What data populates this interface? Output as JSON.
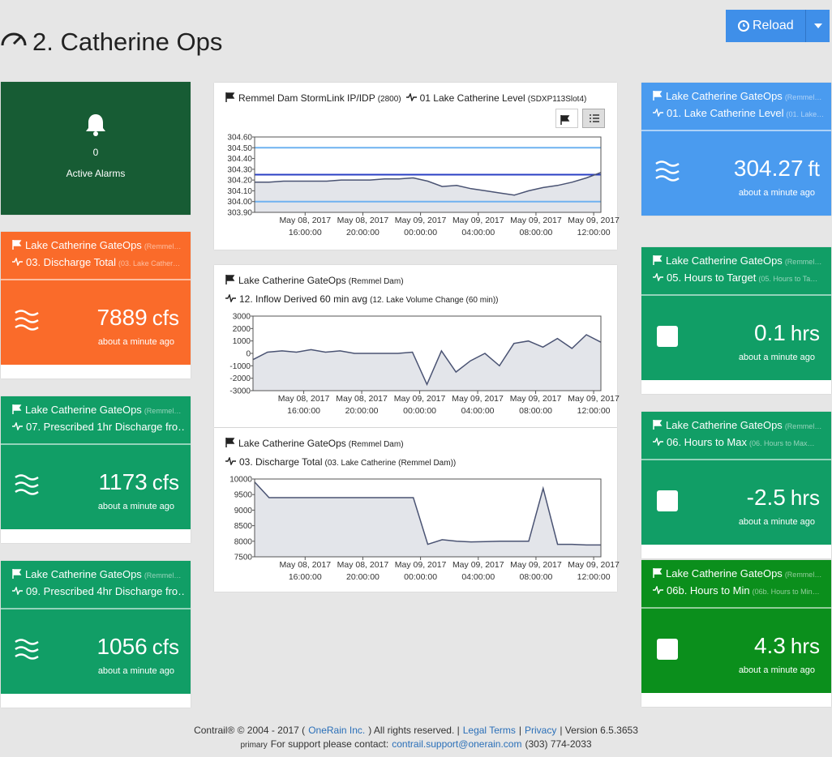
{
  "header": {
    "title": "2. Catherine Ops",
    "button": "Reload"
  },
  "alarms": {
    "count": "0",
    "label": "Active Alarms"
  },
  "tiles": [
    {
      "color": "#4a9bef",
      "icon": "waves",
      "station": "Lake Catherine GateOps",
      "station_note": "(Remmel…",
      "sensor": "01. Lake Catherine Level",
      "sensor_note": "(01. Lake…",
      "value": "304.27",
      "unit": "ft",
      "time": "about a minute ago"
    },
    {
      "color": "#fa6b2a",
      "icon": "waves",
      "station": "Lake Catherine GateOps",
      "station_note": "(Remmel…",
      "sensor": "03. Discharge Total",
      "sensor_note": "(03. Lake Cather…",
      "value": "7889",
      "unit": "cfs",
      "time": "about a minute ago"
    },
    {
      "color": "#119e66",
      "icon": "waves",
      "station": "Lake Catherine GateOps",
      "station_note": "(Remmel…",
      "sensor": "07. Prescribed 1hr Discharge fro…",
      "sensor_note": "",
      "value": "1173",
      "unit": "cfs",
      "time": "about a minute ago"
    },
    {
      "color": "#119e66",
      "icon": "waves",
      "station": "Lake Catherine GateOps",
      "station_note": "(Remmel…",
      "sensor": "09. Prescribed 4hr Discharge fro…",
      "sensor_note": "",
      "value": "1056",
      "unit": "cfs",
      "time": "about a minute ago"
    },
    {
      "color": "#119e66",
      "icon": "square",
      "station": "Lake Catherine GateOps",
      "station_note": "(Remmel…",
      "sensor": "05. Hours to Target",
      "sensor_note": "(05. Hours to Ta…",
      "value": "0.1",
      "unit": "hrs",
      "time": "about a minute ago"
    },
    {
      "color": "#119e66",
      "icon": "square",
      "station": "Lake Catherine GateOps",
      "station_note": "(Remmel…",
      "sensor": "06. Hours to Max",
      "sensor_note": "(06. Hours to Max…",
      "value": "-2.5",
      "unit": "hrs",
      "time": "about a minute ago"
    },
    {
      "color": "#0b8f1c",
      "icon": "square",
      "station": "Lake Catherine GateOps",
      "station_note": "(Remmel…",
      "sensor": "06b. Hours to Min",
      "sensor_note": "(06b. Hours to Min…",
      "value": "4.3",
      "unit": "hrs",
      "time": "about a minute ago"
    }
  ],
  "chart_data": [
    {
      "type": "line",
      "station": "Remmel Dam StormLink IP/IDP",
      "station_note": "(2800)",
      "sensor": "01 Lake Catherine Level",
      "sensor_note": "(SDXP113Slot4)",
      "x": [
        "2017-05-08T12:30",
        "2017-05-08T13:30",
        "2017-05-08T14:30",
        "2017-05-08T15:30",
        "2017-05-08T16:30",
        "2017-05-08T17:30",
        "2017-05-08T18:30",
        "2017-05-08T19:30",
        "2017-05-08T20:30",
        "2017-05-08T21:30",
        "2017-05-08T22:30",
        "2017-05-08T23:30",
        "2017-05-09T00:30",
        "2017-05-09T01:30",
        "2017-05-09T02:30",
        "2017-05-09T03:30",
        "2017-05-09T04:30",
        "2017-05-09T05:30",
        "2017-05-09T06:30",
        "2017-05-09T07:30",
        "2017-05-09T08:30",
        "2017-05-09T09:30",
        "2017-05-09T10:30",
        "2017-05-09T11:30",
        "2017-05-09T12:30"
      ],
      "series": [
        {
          "color": "#4a5373",
          "values": [
            304.18,
            304.18,
            304.19,
            304.19,
            304.19,
            304.19,
            304.2,
            304.2,
            304.2,
            304.21,
            304.21,
            304.22,
            304.19,
            304.14,
            304.15,
            304.12,
            304.1,
            304.08,
            304.06,
            304.1,
            304.13,
            304.15,
            304.18,
            304.22,
            304.27
          ]
        }
      ],
      "reference_lines": [
        {
          "value": 304.5,
          "color": "#6fb2f0"
        },
        {
          "value": 304.25,
          "color": "#2a3fc4"
        },
        {
          "value": 304.0,
          "color": "#6fb2f0"
        }
      ],
      "xlim": [
        "2017-05-08T12:30",
        "2017-05-09T12:30"
      ],
      "xticks": [
        {
          "value": "2017-05-08T16:00",
          "label": "May 08, 2017\n16:00:00"
        },
        {
          "value": "2017-05-08T20:00",
          "label": "May 08, 2017\n20:00:00"
        },
        {
          "value": "2017-05-09T00:00",
          "label": "May 09, 2017\n00:00:00"
        },
        {
          "value": "2017-05-09T04:00",
          "label": "May 09, 2017\n04:00:00"
        },
        {
          "value": "2017-05-09T08:00",
          "label": "May 09, 2017\n08:00:00"
        },
        {
          "value": "2017-05-09T12:00",
          "label": "May 09, 2017\n12:00:00"
        }
      ],
      "ylim": [
        303.9,
        304.6
      ],
      "yticks": [
        {
          "value": 303.9,
          "label": "303.90"
        },
        {
          "value": 304.0,
          "label": "304.00"
        },
        {
          "value": 304.1,
          "label": "304.10"
        },
        {
          "value": 304.2,
          "label": "304.20"
        },
        {
          "value": 304.3,
          "label": "304.30"
        },
        {
          "value": 304.4,
          "label": "304.40"
        },
        {
          "value": 304.5,
          "label": "304.50"
        },
        {
          "value": 304.6,
          "label": "304.60"
        }
      ]
    },
    {
      "type": "line",
      "station": "Lake Catherine GateOps",
      "station_note": "(Remmel Dam)",
      "sensor": "12. Inflow Derived 60 min avg",
      "sensor_note": "(12. Lake Volume Change (60 min))",
      "x": [
        "2017-05-08T12:30",
        "2017-05-08T13:30",
        "2017-05-08T14:30",
        "2017-05-08T15:30",
        "2017-05-08T16:30",
        "2017-05-08T17:30",
        "2017-05-08T18:30",
        "2017-05-08T19:30",
        "2017-05-08T20:30",
        "2017-05-08T21:30",
        "2017-05-08T22:30",
        "2017-05-08T23:30",
        "2017-05-09T00:30",
        "2017-05-09T01:30",
        "2017-05-09T02:30",
        "2017-05-09T03:30",
        "2017-05-09T04:30",
        "2017-05-09T05:30",
        "2017-05-09T06:30",
        "2017-05-09T07:30",
        "2017-05-09T08:30",
        "2017-05-09T09:30",
        "2017-05-09T10:30",
        "2017-05-09T11:30",
        "2017-05-09T12:30"
      ],
      "series": [
        {
          "color": "#4a5373",
          "values": [
            -500,
            100,
            200,
            100,
            300,
            100,
            200,
            0,
            0,
            0,
            0,
            100,
            -2500,
            200,
            -1500,
            -600,
            0,
            -1000,
            800,
            1000,
            500,
            1200,
            400,
            1500,
            900
          ]
        }
      ],
      "xlim": [
        "2017-05-08T12:30",
        "2017-05-09T12:30"
      ],
      "xticks": [
        {
          "value": "2017-05-08T16:00",
          "label": "May 08, 2017\n16:00:00"
        },
        {
          "value": "2017-05-08T20:00",
          "label": "May 08, 2017\n20:00:00"
        },
        {
          "value": "2017-05-09T00:00",
          "label": "May 09, 2017\n00:00:00"
        },
        {
          "value": "2017-05-09T04:00",
          "label": "May 09, 2017\n04:00:00"
        },
        {
          "value": "2017-05-09T08:00",
          "label": "May 09, 2017\n08:00:00"
        },
        {
          "value": "2017-05-09T12:00",
          "label": "May 09, 2017\n12:00:00"
        }
      ],
      "ylim": [
        -3000,
        3000
      ],
      "yticks": [
        -3000,
        -2000,
        -1000,
        0,
        1000,
        2000,
        3000
      ]
    },
    {
      "type": "line",
      "station": "Lake Catherine GateOps",
      "station_note": "(Remmel Dam)",
      "sensor": "03. Discharge Total",
      "sensor_note": "(03. Lake Catherine (Remmel Dam))",
      "x": [
        "2017-05-08T12:30",
        "2017-05-08T13:30",
        "2017-05-08T14:30",
        "2017-05-08T15:30",
        "2017-05-08T16:30",
        "2017-05-08T17:30",
        "2017-05-08T18:30",
        "2017-05-08T19:30",
        "2017-05-08T20:30",
        "2017-05-08T21:30",
        "2017-05-08T22:30",
        "2017-05-08T23:30",
        "2017-05-09T00:30",
        "2017-05-09T01:30",
        "2017-05-09T02:30",
        "2017-05-09T03:30",
        "2017-05-09T04:30",
        "2017-05-09T05:30",
        "2017-05-09T06:30",
        "2017-05-09T07:30",
        "2017-05-09T08:30",
        "2017-05-09T09:30",
        "2017-05-09T10:30",
        "2017-05-09T11:30",
        "2017-05-09T12:30"
      ],
      "series": [
        {
          "color": "#4a5373",
          "values": [
            9900,
            9400,
            9400,
            9400,
            9400,
            9400,
            9400,
            9400,
            9400,
            9400,
            9400,
            9400,
            7900,
            8050,
            8000,
            7980,
            7990,
            8000,
            8000,
            8000,
            9700,
            7900,
            7900,
            7880,
            7880
          ]
        }
      ],
      "xlim": [
        "2017-05-08T12:30",
        "2017-05-09T12:30"
      ],
      "xticks": [
        {
          "value": "2017-05-08T16:00",
          "label": "May 08, 2017\n16:00:00"
        },
        {
          "value": "2017-05-08T20:00",
          "label": "May 08, 2017\n20:00:00"
        },
        {
          "value": "2017-05-09T00:00",
          "label": "May 09, 2017\n00:00:00"
        },
        {
          "value": "2017-05-09T04:00",
          "label": "May 09, 2017\n04:00:00"
        },
        {
          "value": "2017-05-09T08:00",
          "label": "May 09, 2017\n08:00:00"
        },
        {
          "value": "2017-05-09T12:00",
          "label": "May 09, 2017\n12:00:00"
        }
      ],
      "ylim": [
        7500,
        10000
      ],
      "yticks": [
        7500,
        8000,
        8500,
        9000,
        9500,
        10000
      ]
    }
  ],
  "footer": {
    "line1": [
      {
        "text": "Contrail® © 2004 - 2017 ("
      },
      {
        "text": "OneRain Inc.",
        "link": true
      },
      {
        "text": ") All rights reserved. |"
      },
      {
        "text": "Legal Terms",
        "link": true
      },
      {
        "text": "|"
      },
      {
        "text": "Privacy",
        "link": true
      },
      {
        "text": "| Version 6.5.3653"
      }
    ],
    "line2": [
      {
        "text": "primary",
        "small": true
      },
      {
        "text": "For support please contact:"
      },
      {
        "text": "contrail.support@onerain.com",
        "link": true
      },
      {
        "text": "(303) 774-2033"
      }
    ]
  }
}
